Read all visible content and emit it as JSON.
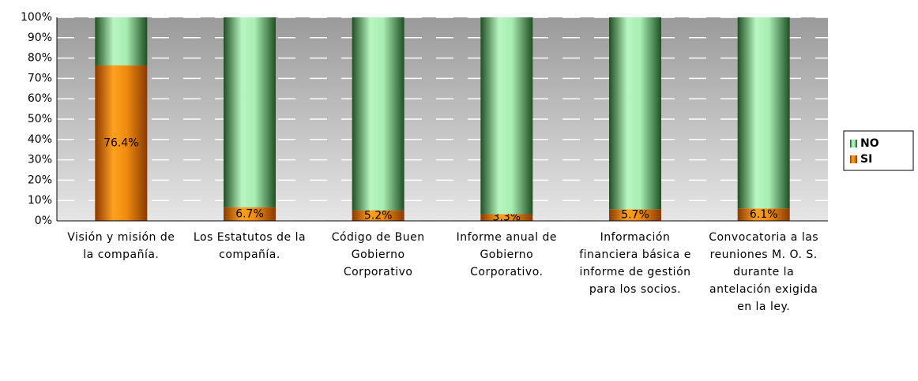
{
  "chart_data": {
    "type": "stacked_bar",
    "categories": [
      "Visión y misión de la compañía.",
      "Los Estatutos de la compañía.",
      "Código de Buen Gobierno Corporativo",
      "Informe anual de Gobierno Corporativo.",
      "Información financiera básica e informe de gestión para los socios.",
      "Convocatoria a las reuniones M. O. S. durante la antelación exigida en la ley."
    ],
    "series": [
      {
        "name": "SI",
        "color": "#e07800",
        "values": [
          76.4,
          6.7,
          5.2,
          3.3,
          5.7,
          6.1
        ],
        "value_labels": [
          "76.4%",
          "6.7%",
          "5.2%",
          "3.3%",
          "5.7%",
          "6.1%"
        ]
      },
      {
        "name": "NO",
        "color": "#9fe8a8",
        "values": [
          23.6,
          93.3,
          94.8,
          96.7,
          94.3,
          93.9
        ]
      }
    ],
    "ylim": [
      0,
      100
    ],
    "yticks": [
      {
        "value": 0,
        "label": "0%"
      },
      {
        "value": 10,
        "label": "10%"
      },
      {
        "value": 20,
        "label": "20%"
      },
      {
        "value": 30,
        "label": "30%"
      },
      {
        "value": 40,
        "label": "40%"
      },
      {
        "value": 50,
        "label": "50%"
      },
      {
        "value": 60,
        "label": "60%"
      },
      {
        "value": 70,
        "label": "70%"
      },
      {
        "value": 80,
        "label": "80%"
      },
      {
        "value": 90,
        "label": "90%"
      },
      {
        "value": 100,
        "label": "100%"
      }
    ],
    "grid": true,
    "legend": "right"
  }
}
